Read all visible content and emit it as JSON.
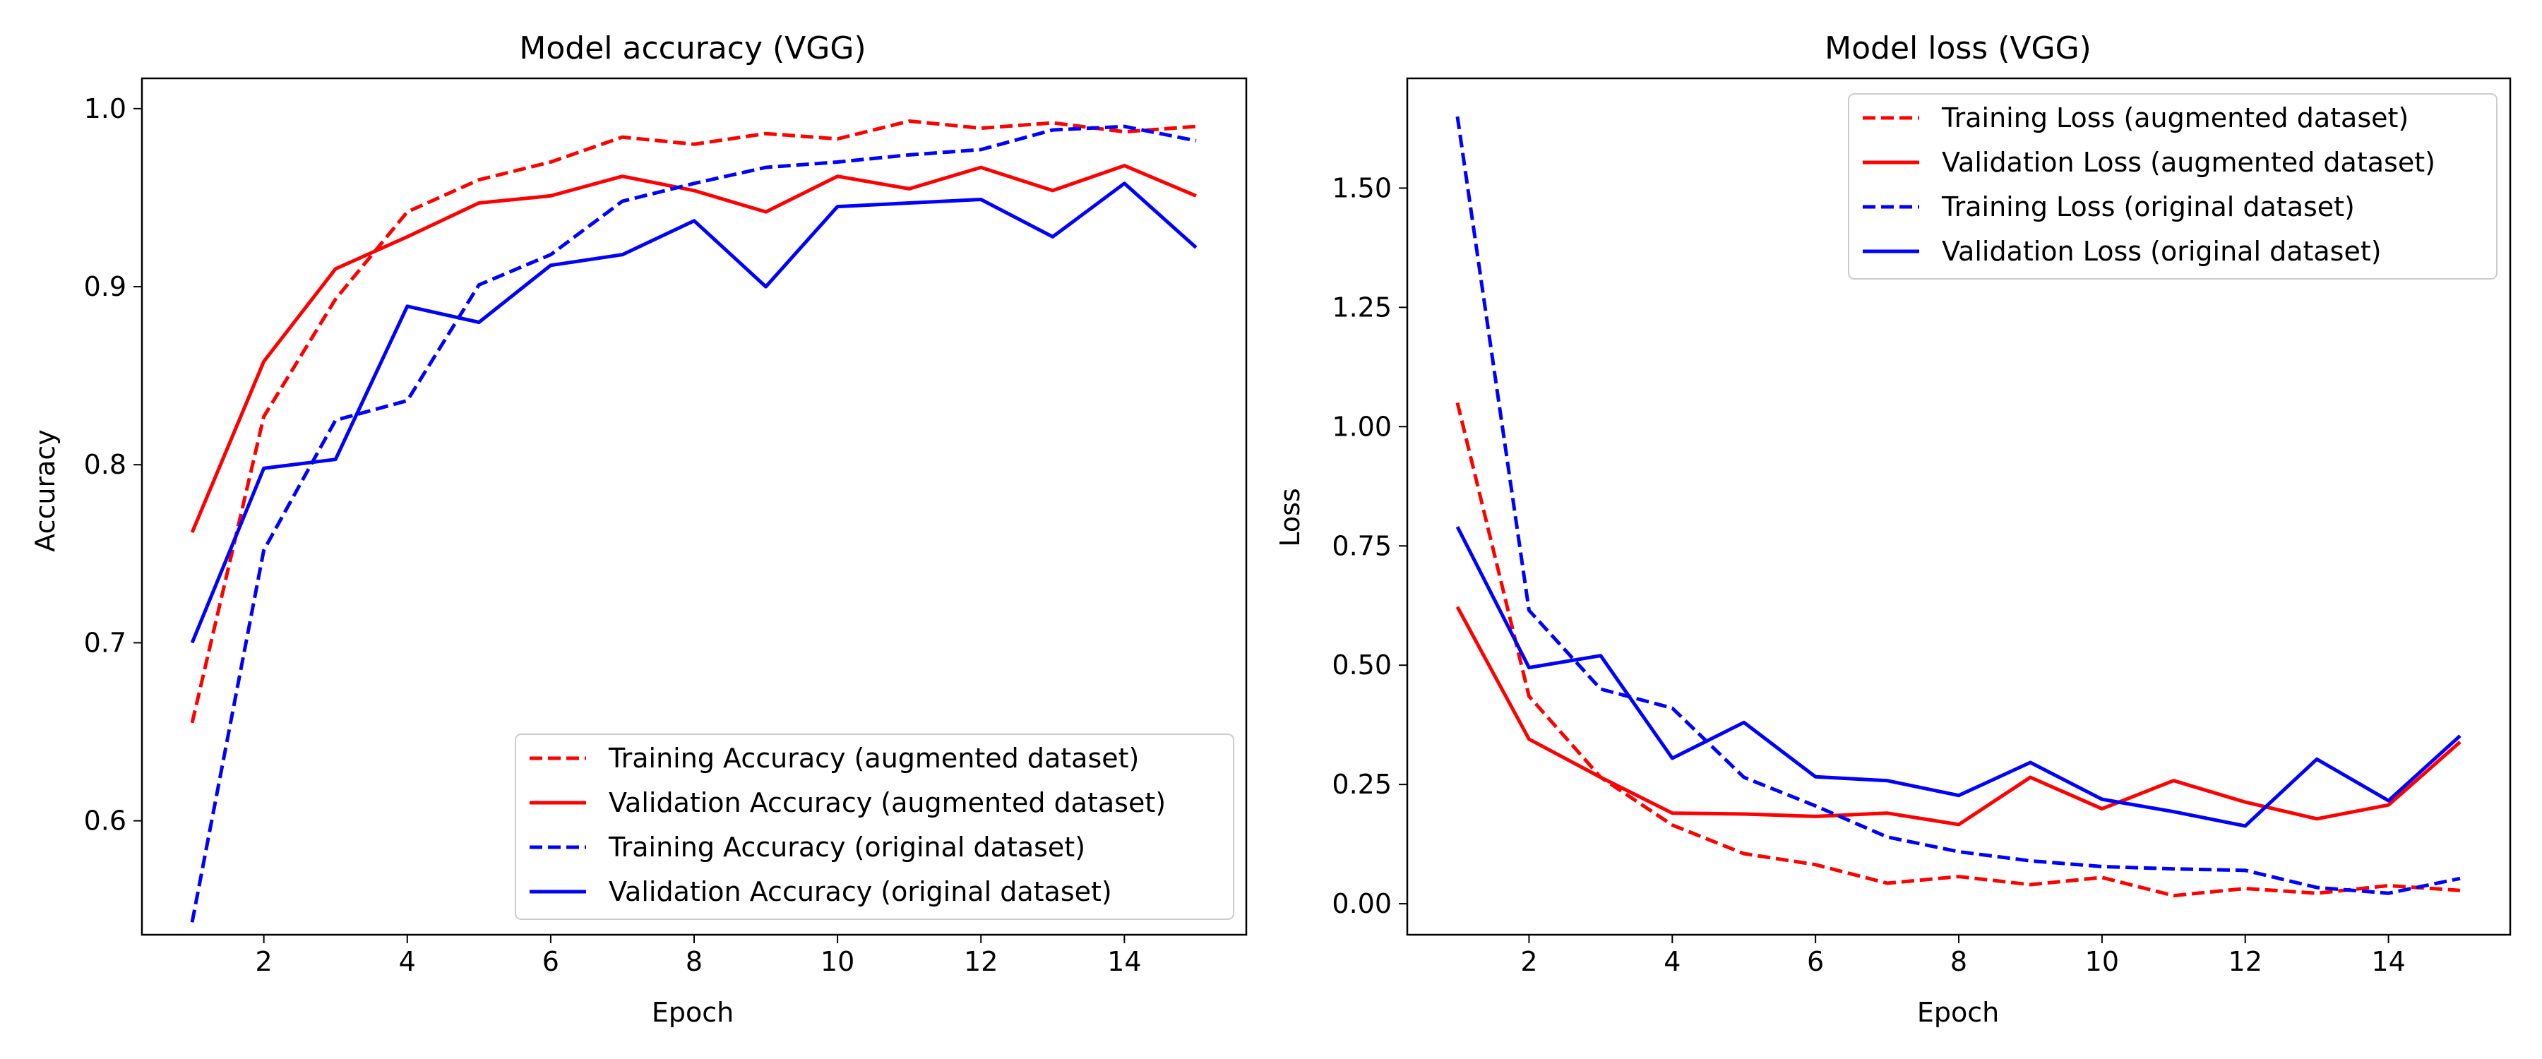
{
  "colors": {
    "augmented": "#ff0000",
    "original": "#0000ff"
  },
  "chart_data": [
    {
      "type": "line",
      "title": "Model accuracy (VGG)",
      "xlabel": "Epoch",
      "ylabel": "Accuracy",
      "xlim": [
        0.3,
        15.7
      ],
      "ylim": [
        0.536,
        1.017
      ],
      "xticks": [
        2,
        4,
        6,
        8,
        10,
        12,
        14
      ],
      "xtick_labels": [
        "2",
        "4",
        "6",
        "8",
        "10",
        "12",
        "14"
      ],
      "yticks": [
        0.6,
        0.7,
        0.8,
        0.9,
        1.0
      ],
      "ytick_labels": [
        "0.6",
        "0.7",
        "0.8",
        "0.9",
        "1.0"
      ],
      "grid": false,
      "legend_position": "lower right",
      "x": [
        1,
        2,
        3,
        4,
        5,
        6,
        7,
        8,
        9,
        10,
        11,
        12,
        13,
        14,
        15
      ],
      "series": [
        {
          "name": "Training Accuracy (augmented dataset)",
          "color": "#ff0000",
          "style": "dashed",
          "values": [
            0.655,
            0.827,
            0.893,
            0.942,
            0.96,
            0.97,
            0.984,
            0.98,
            0.986,
            0.983,
            0.993,
            0.989,
            0.992,
            0.987,
            0.99
          ]
        },
        {
          "name": "Validation Accuracy (augmented dataset)",
          "color": "#ff0000",
          "style": "solid",
          "values": [
            0.762,
            0.858,
            0.91,
            0.928,
            0.947,
            0.951,
            0.962,
            0.954,
            0.942,
            0.962,
            0.955,
            0.967,
            0.954,
            0.968,
            0.951
          ]
        },
        {
          "name": "Training Accuracy (original dataset)",
          "color": "#0000ff",
          "style": "dashed",
          "values": [
            0.543,
            0.752,
            0.825,
            0.836,
            0.901,
            0.918,
            0.948,
            0.958,
            0.967,
            0.97,
            0.974,
            0.977,
            0.988,
            0.99,
            0.982
          ]
        },
        {
          "name": "Validation Accuracy (original dataset)",
          "color": "#0000ff",
          "style": "solid",
          "values": [
            0.7,
            0.798,
            0.803,
            0.889,
            0.88,
            0.912,
            0.918,
            0.937,
            0.9,
            0.945,
            0.947,
            0.949,
            0.928,
            0.958,
            0.922
          ]
        }
      ]
    },
    {
      "type": "line",
      "title": "Model loss (VGG)",
      "xlabel": "Epoch",
      "ylabel": "Loss",
      "xlim": [
        0.3,
        15.7
      ],
      "ylim": [
        -0.065,
        1.73
      ],
      "xticks": [
        2,
        4,
        6,
        8,
        10,
        12,
        14
      ],
      "xtick_labels": [
        "2",
        "4",
        "6",
        "8",
        "10",
        "12",
        "14"
      ],
      "yticks": [
        0.0,
        0.25,
        0.5,
        0.75,
        1.0,
        1.25,
        1.5
      ],
      "ytick_labels": [
        "0.00",
        "0.25",
        "0.50",
        "0.75",
        "1.00",
        "1.25",
        "1.50"
      ],
      "grid": false,
      "legend_position": "upper right",
      "x": [
        1,
        2,
        3,
        4,
        5,
        6,
        7,
        8,
        9,
        10,
        11,
        12,
        13,
        14,
        15
      ],
      "series": [
        {
          "name": "Training Loss (augmented dataset)",
          "color": "#ff0000",
          "style": "dashed",
          "values": [
            1.05,
            0.435,
            0.265,
            0.165,
            0.105,
            0.082,
            0.043,
            0.057,
            0.04,
            0.055,
            0.017,
            0.032,
            0.022,
            0.038,
            0.028
          ]
        },
        {
          "name": "Validation Loss (augmented dataset)",
          "color": "#ff0000",
          "style": "solid",
          "values": [
            0.622,
            0.345,
            0.265,
            0.19,
            0.188,
            0.183,
            0.19,
            0.166,
            0.265,
            0.199,
            0.258,
            0.213,
            0.178,
            0.207,
            0.339
          ]
        },
        {
          "name": "Training Loss (original dataset)",
          "color": "#0000ff",
          "style": "dashed",
          "values": [
            1.65,
            0.615,
            0.45,
            0.41,
            0.265,
            0.205,
            0.14,
            0.109,
            0.09,
            0.078,
            0.073,
            0.07,
            0.034,
            0.022,
            0.053
          ]
        },
        {
          "name": "Validation Loss (original dataset)",
          "color": "#0000ff",
          "style": "solid",
          "values": [
            0.79,
            0.495,
            0.52,
            0.305,
            0.38,
            0.266,
            0.258,
            0.227,
            0.296,
            0.219,
            0.193,
            0.163,
            0.303,
            0.216,
            0.352
          ]
        }
      ]
    }
  ]
}
